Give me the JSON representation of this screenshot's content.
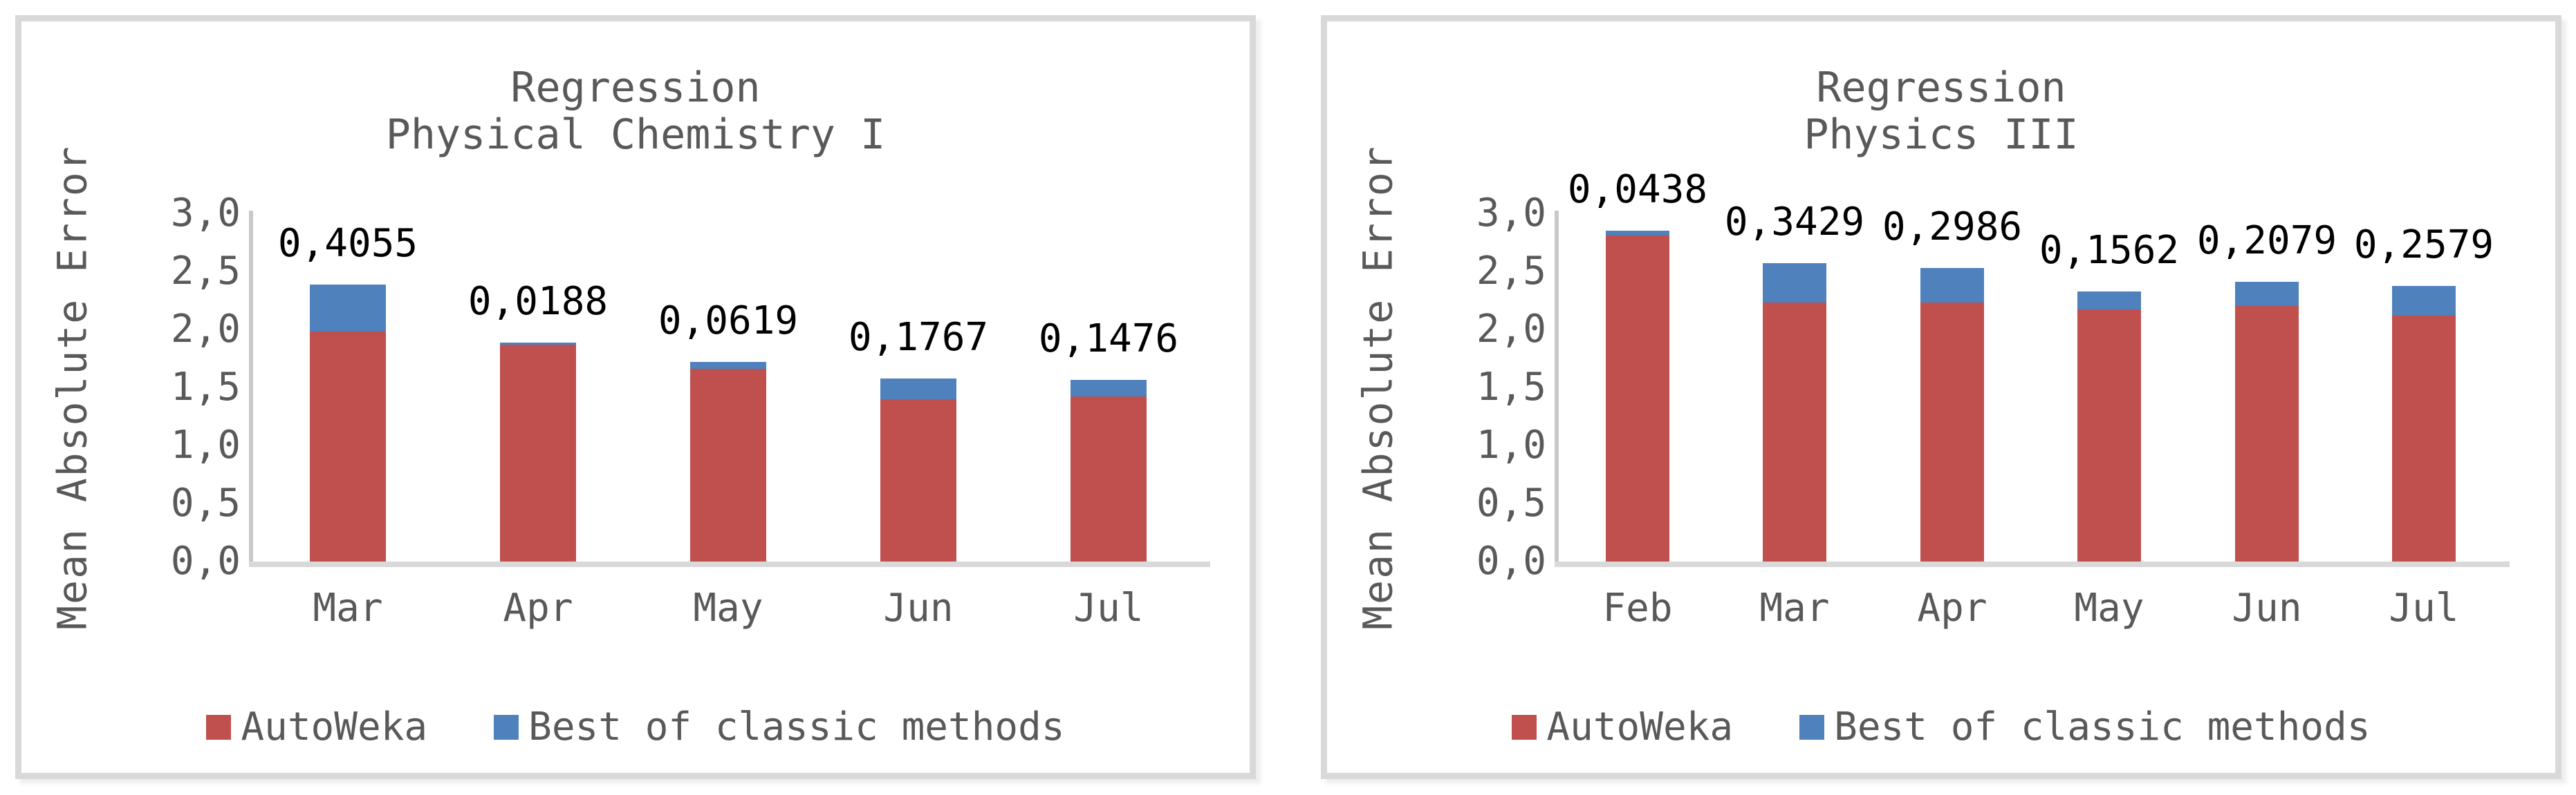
{
  "colors": {
    "autoweka": "#C0504D",
    "best_classic": "#4F81BD",
    "text_gray": "#595959",
    "data_label_black": "#000000",
    "axis_line": "#C9C9C9",
    "baseline": "#D9D9D9",
    "panel_border": "#D9D9D9"
  },
  "chart_data": [
    {
      "type": "bar",
      "subtype": "stacked",
      "title_lines": [
        "Regression",
        "Physical Chemistry I"
      ],
      "ylabel": "Mean Absolute Error",
      "xlabel": "",
      "categories": [
        "Mar",
        "Apr",
        "May",
        "Jun",
        "Jul"
      ],
      "series": [
        {
          "name": "AutoWeka",
          "color": "#C0504D",
          "values": [
            1.98,
            1.87,
            1.66,
            1.4,
            1.42
          ]
        },
        {
          "name": "Best of classic methods",
          "color": "#4F81BD",
          "values": [
            0.4055,
            0.0188,
            0.0619,
            0.1767,
            0.1476
          ],
          "note": "stacked increment above AutoWeka; totals ≈ [2.39, 1.89, 1.72, 1.58, 1.57]"
        }
      ],
      "data_labels": [
        "0,4055",
        "0,0188",
        "0,0619",
        "0,1767",
        "0,1476"
      ],
      "ylim": [
        0,
        3
      ],
      "ytick_values": [
        0,
        0.5,
        1,
        1.5,
        2,
        2.5,
        3
      ],
      "ytick_labels": [
        "0,0",
        "0,5",
        "1,0",
        "1,5",
        "2,0",
        "2,5",
        "3,0"
      ],
      "grid": false,
      "legend_position": "bottom",
      "legend": [
        "AutoWeka",
        "Best of classic methods"
      ]
    },
    {
      "type": "bar",
      "subtype": "stacked",
      "title_lines": [
        "Regression",
        "Physics III"
      ],
      "ylabel": "Mean Absolute Error",
      "xlabel": "",
      "categories": [
        "Feb",
        "Mar",
        "Apr",
        "May",
        "Jun",
        "Jul"
      ],
      "series": [
        {
          "name": "AutoWeka",
          "color": "#C0504D",
          "values": [
            2.81,
            2.23,
            2.23,
            2.17,
            2.2,
            2.12
          ]
        },
        {
          "name": "Best of classic methods",
          "color": "#4F81BD",
          "values": [
            0.0438,
            0.3429,
            0.2986,
            0.1562,
            0.2079,
            0.2579
          ],
          "note": "stacked increment above AutoWeka; totals ≈ [2.85, 2.57, 2.53, 2.33, 2.41, 2.38]"
        }
      ],
      "data_labels": [
        "0,0438",
        "0,3429",
        "0,2986",
        "0,1562",
        "0,2079",
        "0,2579"
      ],
      "ylim": [
        0,
        3
      ],
      "ytick_values": [
        0,
        0.5,
        1,
        1.5,
        2,
        2.5,
        3
      ],
      "ytick_labels": [
        "0,0",
        "0,5",
        "1,0",
        "1,5",
        "2,0",
        "2,5",
        "3,0"
      ],
      "grid": false,
      "legend_position": "bottom",
      "legend": [
        "AutoWeka",
        "Best of classic methods"
      ]
    }
  ]
}
